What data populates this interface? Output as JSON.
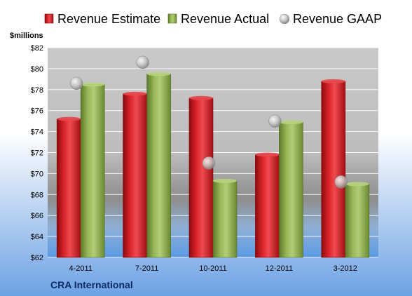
{
  "chart_data": {
    "type": "bar",
    "unit_label": "$millions",
    "categories": [
      "4-2011",
      "7-2011",
      "10-2011",
      "12-2011",
      "3-2012"
    ],
    "series": [
      {
        "name": "Revenue Estimate",
        "kind": "bar",
        "color": "#d0141b",
        "values": [
          75.2,
          77.6,
          77.2,
          71.8,
          78.8
        ]
      },
      {
        "name": "Revenue Actual",
        "kind": "bar",
        "color": "#8fb04a",
        "values": [
          78.5,
          79.5,
          69.3,
          74.9,
          69.0
        ]
      },
      {
        "name": "Revenue GAAP",
        "kind": "marker",
        "color": "#b0b0b0",
        "values": [
          78.6,
          80.6,
          71.0,
          75.0,
          69.2
        ]
      }
    ],
    "ylim": [
      62,
      82
    ],
    "yticks": [
      "$62",
      "$64",
      "$66",
      "$68",
      "$70",
      "$72",
      "$74",
      "$76",
      "$78",
      "$80",
      "$82"
    ],
    "grid": true,
    "legend_position": "top"
  },
  "footer": {
    "company": "CRA International"
  }
}
